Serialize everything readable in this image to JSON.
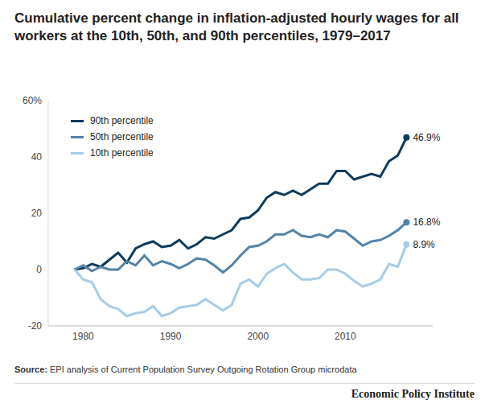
{
  "chart_data": {
    "type": "line",
    "title": "Cumulative percent change in inflation-adjusted hourly wages for all workers at the 10th, 50th, and 90th percentiles, 1979–2017",
    "source": "Source: EPI analysis of Current Population Survey Outgoing Rotation Group microdata",
    "credit": "Economic Policy Institute",
    "x": [
      1979,
      1980,
      1981,
      1982,
      1983,
      1984,
      1985,
      1986,
      1987,
      1988,
      1989,
      1990,
      1991,
      1992,
      1993,
      1994,
      1995,
      1996,
      1997,
      1998,
      1999,
      2000,
      2001,
      2002,
      2003,
      2004,
      2005,
      2006,
      2007,
      2008,
      2009,
      2010,
      2011,
      2012,
      2013,
      2014,
      2015,
      2016,
      2017
    ],
    "series": [
      {
        "name": "90th percentile",
        "color": "#0e3a5c",
        "line_style": "solid",
        "marker": "circle",
        "values": [
          0,
          0.5,
          2,
          1,
          3.5,
          6,
          2.5,
          7.5,
          9,
          10,
          8,
          8.5,
          10.5,
          7.5,
          9,
          11.5,
          11,
          12.5,
          14,
          18,
          18.5,
          21,
          25.5,
          27.5,
          26.5,
          28,
          26.5,
          28.5,
          30.5,
          30.5,
          35,
          35,
          32,
          33,
          34,
          33,
          38.5,
          40.5,
          46.9
        ],
        "value_labels": [
          null,
          null,
          null,
          null,
          null,
          null,
          null,
          null,
          null,
          null,
          null,
          null,
          null,
          null,
          null,
          null,
          null,
          null,
          null,
          null,
          null,
          null,
          null,
          null,
          null,
          null,
          null,
          null,
          null,
          null,
          null,
          null,
          null,
          null,
          null,
          null,
          null,
          null,
          "46.9%"
        ]
      },
      {
        "name": "50th percentile",
        "color": "#5383a8",
        "line_style": "solid",
        "marker": "circle",
        "values": [
          0,
          1.5,
          -0.5,
          1,
          0,
          0,
          3,
          1.5,
          5,
          1.5,
          3,
          2,
          0.5,
          2,
          4,
          3.5,
          1.5,
          -1,
          1.5,
          5,
          8,
          8.5,
          10,
          12.5,
          12.5,
          14,
          12,
          11.5,
          12.5,
          11.5,
          14,
          13.5,
          11,
          8.5,
          10,
          10.5,
          12,
          14,
          16.8
        ],
        "value_labels": [
          null,
          null,
          null,
          null,
          null,
          null,
          null,
          null,
          null,
          null,
          null,
          null,
          null,
          null,
          null,
          null,
          null,
          null,
          null,
          null,
          null,
          null,
          null,
          null,
          null,
          null,
          null,
          null,
          null,
          null,
          null,
          null,
          null,
          null,
          null,
          null,
          null,
          null,
          "16.8%"
        ]
      },
      {
        "name": "10th percentile",
        "color": "#a7cce8",
        "line_style": "solid",
        "marker": "circle",
        "values": [
          0,
          -3.5,
          -4.5,
          -10.5,
          -13,
          -14,
          -16.5,
          -15.5,
          -15,
          -13,
          -16.5,
          -15.5,
          -13.5,
          -13,
          -12.5,
          -10.5,
          -12.5,
          -14.5,
          -12.5,
          -5,
          -3.5,
          -6,
          -1.5,
          0.5,
          2,
          -1,
          -3.5,
          -3.5,
          -3,
          0,
          0,
          -1.5,
          -4,
          -6,
          -5,
          -3.5,
          2,
          1,
          8.9
        ],
        "value_labels": [
          null,
          null,
          null,
          null,
          null,
          null,
          null,
          null,
          null,
          null,
          null,
          null,
          null,
          null,
          null,
          null,
          null,
          null,
          null,
          null,
          null,
          null,
          null,
          null,
          null,
          null,
          null,
          null,
          null,
          null,
          null,
          null,
          null,
          null,
          null,
          null,
          null,
          null,
          "8.9%"
        ]
      }
    ],
    "xlim": [
      1976,
      2020
    ],
    "xticks": [
      1980,
      1990,
      2000,
      2010
    ],
    "ylim": [
      -20,
      60
    ],
    "yticks": [
      -20,
      0,
      20,
      40,
      {
        "value": 60,
        "label": "60%"
      }
    ],
    "grid": false,
    "legend": "upper left",
    "data_labels": true
  }
}
